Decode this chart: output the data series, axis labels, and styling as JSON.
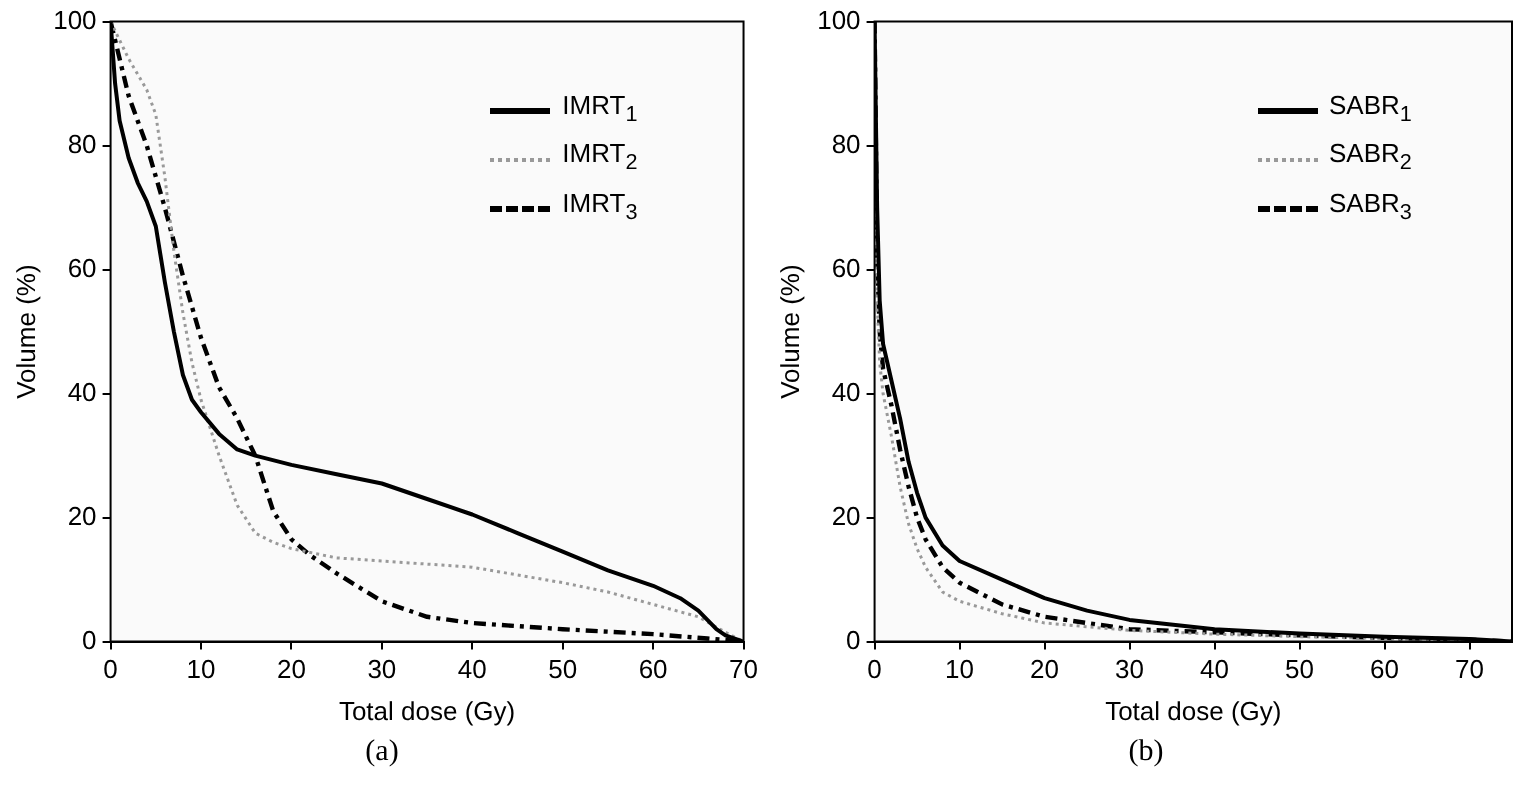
{
  "chart_data": [
    {
      "type": "line",
      "xlabel": "Total dose (Gy)",
      "ylabel": "Volume (%)",
      "xlim": [
        0,
        70
      ],
      "xticks": [
        0,
        10,
        20,
        30,
        40,
        50,
        60,
        70
      ],
      "ylim": [
        0,
        100
      ],
      "yticks": [
        0,
        20,
        40,
        60,
        80,
        100
      ],
      "grid": false,
      "legend": "top right",
      "marker": "none",
      "annotations": [
        "(a)"
      ],
      "series": [
        {
          "name": "IMRT$_{1}$",
          "color": "#000000",
          "line_style": "solid",
          "x": [
            0,
            0.5,
            1,
            2,
            3,
            4,
            5,
            6,
            7,
            8,
            9,
            10,
            12,
            14,
            16,
            20,
            25,
            30,
            35,
            40,
            45,
            50,
            55,
            60,
            63,
            65,
            66,
            67,
            68,
            70
          ],
          "values": [
            100,
            90,
            84,
            78,
            74,
            71,
            67,
            58,
            50,
            43,
            39,
            37,
            33.5,
            31,
            30,
            28.5,
            27,
            25.5,
            23,
            20.5,
            17.5,
            14.5,
            11.5,
            9,
            7,
            5,
            3.5,
            2,
            1,
            0
          ]
        },
        {
          "name": "IMRT$_{2}$",
          "color": "#999999",
          "line_style": "dotted",
          "x": [
            0,
            2,
            4,
            5,
            6,
            7,
            8,
            9,
            10,
            12,
            14,
            16,
            18,
            20,
            25,
            30,
            40,
            50,
            55,
            60,
            65,
            68,
            70
          ],
          "values": [
            100,
            94,
            89,
            85,
            75,
            63,
            53,
            45,
            39,
            30,
            22,
            17.5,
            16,
            15,
            13.5,
            13,
            12,
            9.5,
            8,
            6,
            4,
            1.5,
            0
          ]
        },
        {
          "name": "IMRT$_{3}$",
          "color": "#000000",
          "line_style": "dashed",
          "x": [
            0,
            1,
            2,
            4,
            6,
            8,
            10,
            12,
            14,
            16,
            18,
            20,
            22,
            25,
            30,
            35,
            40,
            50,
            60,
            66,
            70
          ],
          "values": [
            100,
            94,
            88,
            80,
            70,
            59,
            49,
            41,
            36,
            30,
            21,
            16.5,
            14,
            11,
            6.5,
            4,
            3,
            2,
            1.2,
            0.5,
            0
          ]
        }
      ]
    },
    {
      "type": "line",
      "xlabel": "Total dose (Gy)",
      "ylabel": "Volume (%)",
      "xlim": [
        0,
        75
      ],
      "xticks": [
        0,
        10,
        20,
        30,
        40,
        50,
        60,
        70
      ],
      "ylim": [
        0,
        100
      ],
      "yticks": [
        0,
        20,
        40,
        60,
        80,
        100
      ],
      "grid": false,
      "legend": "top right",
      "marker": "none",
      "annotations": [
        "(b)"
      ],
      "series": [
        {
          "name": "SABR$_{1}$",
          "color": "#000000",
          "line_style": "solid",
          "x": [
            0,
            0.3,
            0.6,
            1,
            2,
            3,
            4,
            5,
            6,
            8,
            10,
            15,
            20,
            25,
            30,
            40,
            50,
            60,
            70,
            75
          ],
          "values": [
            100,
            70,
            55,
            48,
            42,
            36,
            29,
            24,
            20,
            15.5,
            13,
            10,
            7,
            5,
            3.5,
            2,
            1.3,
            0.8,
            0.4,
            0
          ]
        },
        {
          "name": "SABR$_{2}$",
          "color": "#999999",
          "line_style": "dotted",
          "x": [
            0,
            0.3,
            0.6,
            1,
            2,
            3,
            4,
            5,
            6,
            8,
            10,
            15,
            20,
            30,
            40,
            50,
            60,
            70,
            75
          ],
          "values": [
            100,
            55,
            45,
            40,
            33,
            25,
            19,
            15,
            12,
            8,
            6.5,
            4.5,
            3,
            1.8,
            1.2,
            0.8,
            0.5,
            0.2,
            0
          ]
        },
        {
          "name": "SABR$_{3}$",
          "color": "#000000",
          "line_style": "dashed",
          "x": [
            0,
            0.3,
            0.6,
            1,
            2,
            3,
            4,
            5,
            6,
            8,
            10,
            15,
            20,
            25,
            30,
            40,
            50,
            60,
            70,
            75
          ],
          "values": [
            100,
            62,
            50,
            44,
            38,
            31,
            25,
            20,
            16.5,
            12,
            9.5,
            6,
            4,
            3,
            2,
            1.5,
            1,
            0.6,
            0.3,
            0
          ]
        }
      ]
    }
  ]
}
